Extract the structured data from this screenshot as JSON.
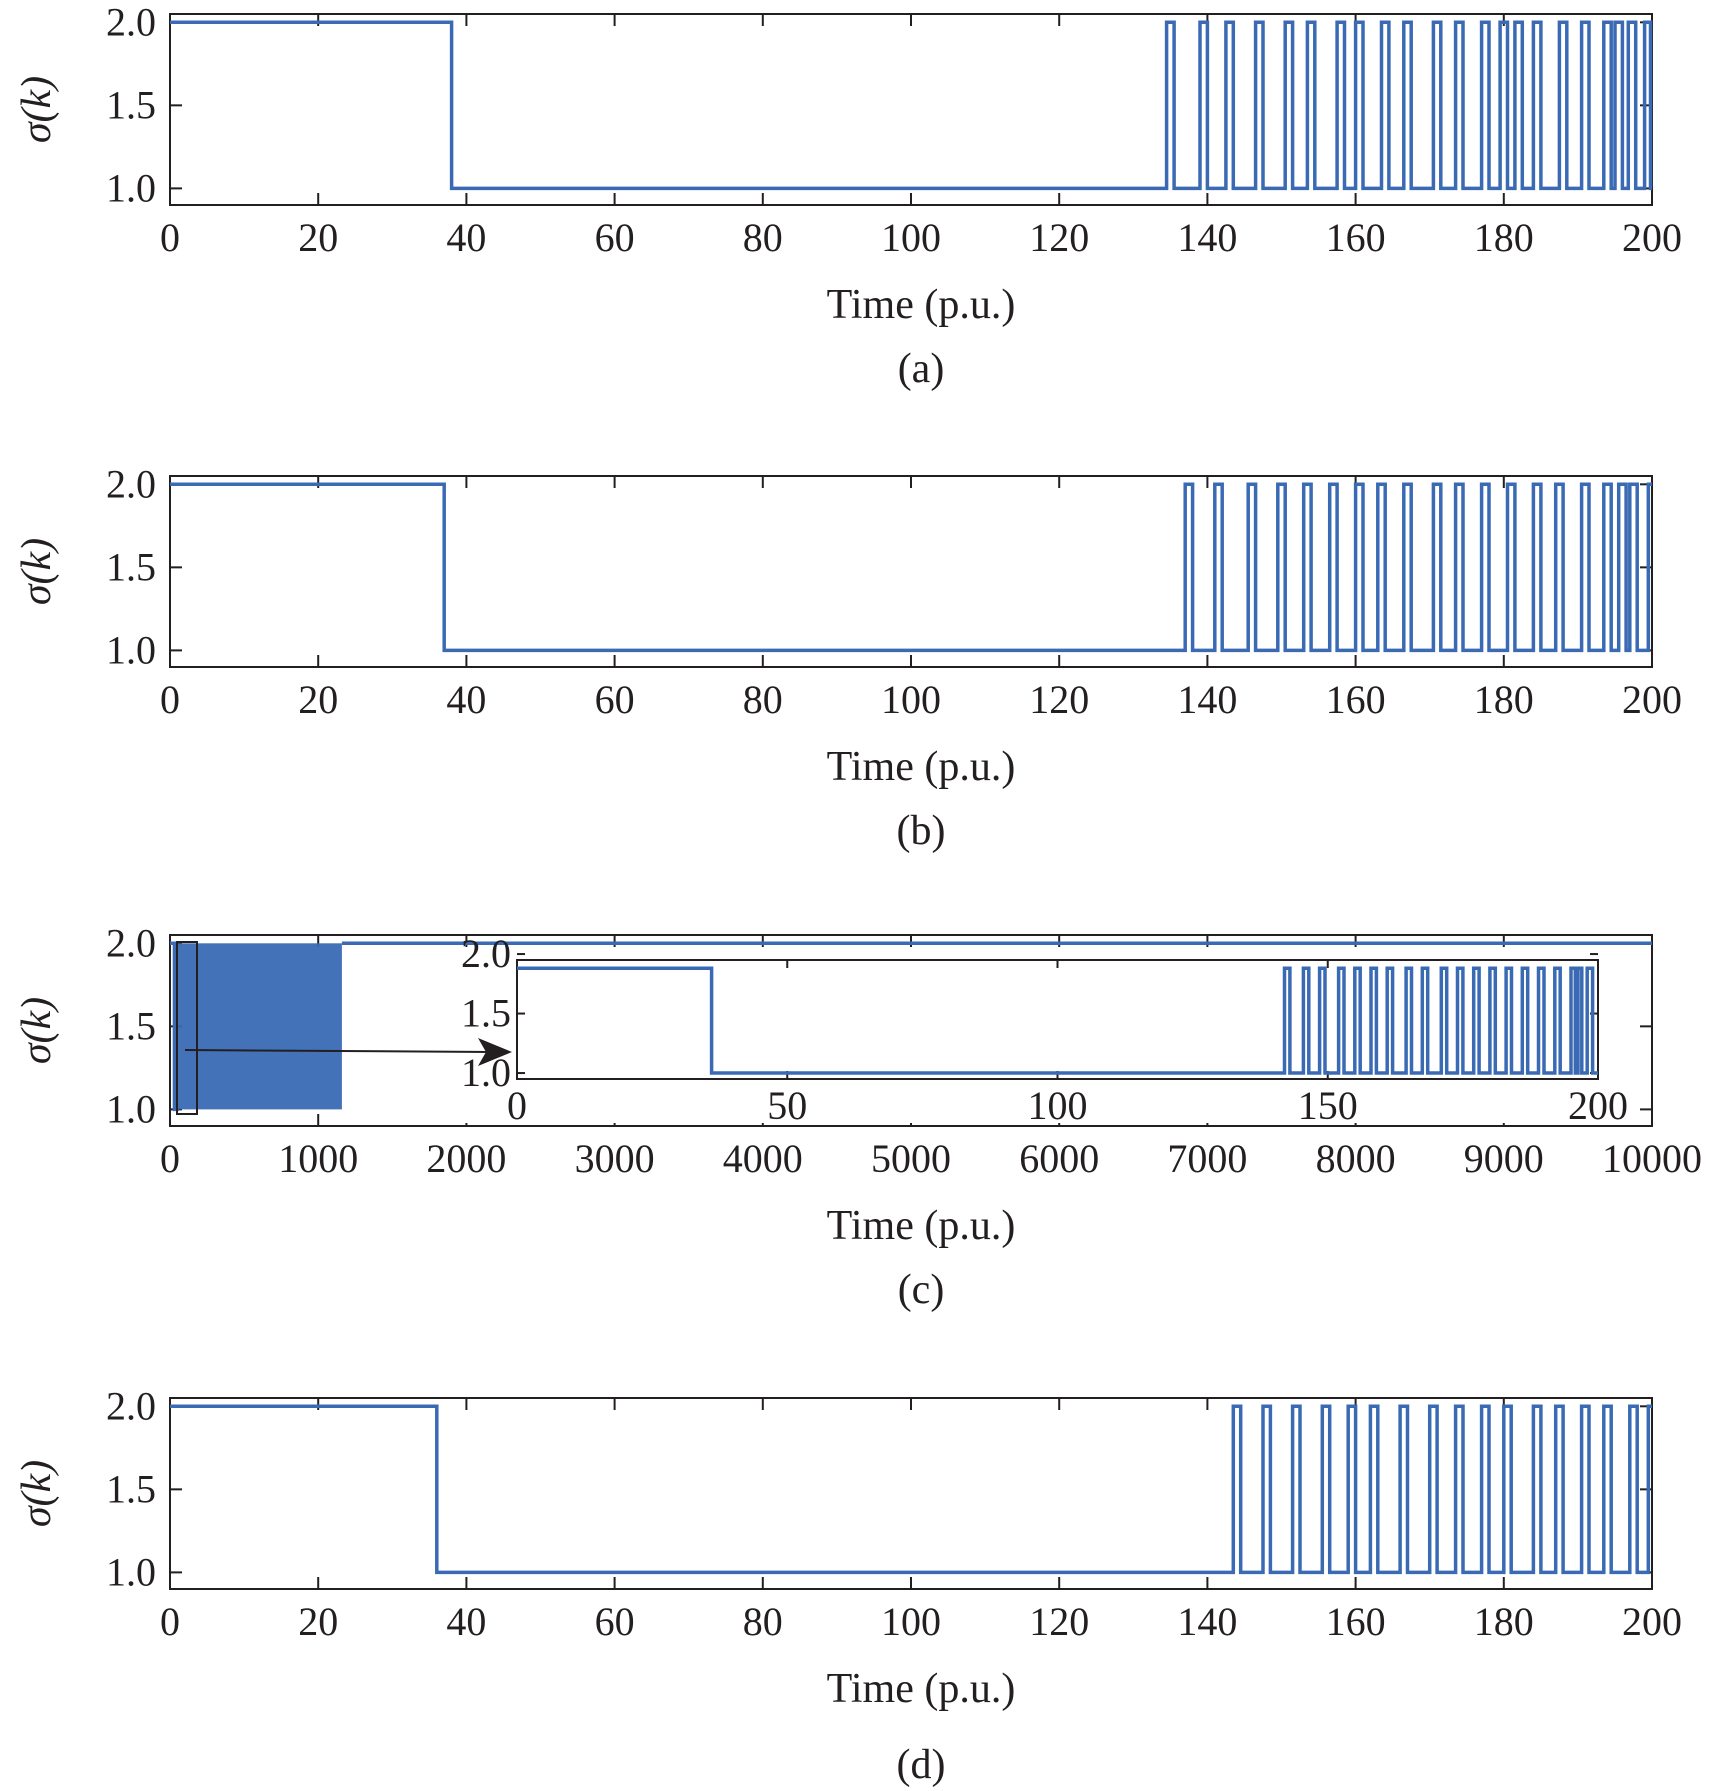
{
  "chart_data": [
    {
      "type": "line",
      "caption": "(a)",
      "xlabel": "Time (p.u.)",
      "ylabel": "σ(k)",
      "xlim": [
        0,
        200
      ],
      "ylim": [
        0.9,
        2.05
      ],
      "xticks": [
        0,
        20,
        40,
        60,
        80,
        100,
        120,
        140,
        160,
        180,
        200
      ],
      "xtick_labels": [
        "0",
        "20",
        "40",
        "60",
        "80",
        "100",
        "120",
        "140",
        "160",
        "180",
        "200"
      ],
      "yticks": [
        1.0,
        1.5,
        2.0
      ],
      "ytick_labels": [
        "1.0",
        "1.5",
        "2.0"
      ],
      "grid": false,
      "series": [
        {
          "color": "#3a6ab4",
          "initial": 2,
          "switches": [
            38,
            134.5,
            135.5,
            139,
            140,
            142.5,
            143.5,
            146.5,
            147.5,
            150.5,
            151.5,
            153.5,
            154.5,
            157.5,
            158.5,
            160,
            161,
            163.5,
            164.5,
            166.5,
            167.5,
            170.5,
            171.5,
            173.5,
            174.5,
            177,
            178,
            179.5,
            180.5,
            181.5,
            182.5,
            184,
            185,
            187.5,
            188.5,
            190.5,
            191.5,
            193.5,
            194.5,
            195,
            196,
            196.8,
            197.8,
            199,
            199.8
          ]
        }
      ]
    },
    {
      "type": "line",
      "caption": "(b)",
      "xlabel": "Time (p.u.)",
      "ylabel": "σ(k)",
      "xlim": [
        0,
        200
      ],
      "ylim": [
        0.9,
        2.05
      ],
      "xticks": [
        0,
        20,
        40,
        60,
        80,
        100,
        120,
        140,
        160,
        180,
        200
      ],
      "xtick_labels": [
        "0",
        "20",
        "40",
        "60",
        "80",
        "100",
        "120",
        "140",
        "160",
        "180",
        "200"
      ],
      "yticks": [
        1.0,
        1.5,
        2.0
      ],
      "ytick_labels": [
        "1.0",
        "1.5",
        "2.0"
      ],
      "grid": false,
      "series": [
        {
          "color": "#3a6ab4",
          "initial": 2,
          "switches": [
            37,
            137,
            138,
            141,
            142,
            145.5,
            146.5,
            149.5,
            150.5,
            153,
            154,
            156.5,
            157.5,
            160,
            161,
            163,
            164,
            166.5,
            167.5,
            170.5,
            171.5,
            173.5,
            174.5,
            177,
            178,
            180.5,
            181.5,
            184,
            185,
            187,
            188,
            190.5,
            191.5,
            193.5,
            194.5,
            195.5,
            196.5,
            197,
            198,
            199.5
          ]
        }
      ]
    },
    {
      "type": "line",
      "caption": "(c)",
      "xlabel": "Time (p.u.)",
      "ylabel": "σ(k)",
      "xlim": [
        0,
        10000
      ],
      "ylim": [
        0.9,
        2.05
      ],
      "xticks": [
        0,
        1000,
        2000,
        3000,
        4000,
        5000,
        6000,
        7000,
        8000,
        9000,
        10000
      ],
      "xtick_labels": [
        "0",
        "1000",
        "2000",
        "3000",
        "4000",
        "5000",
        "6000",
        "7000",
        "8000",
        "9000",
        "10000"
      ],
      "yticks": [
        1.0,
        1.5,
        2.0
      ],
      "ytick_labels": [
        "1.0",
        "1.5",
        "2.0"
      ],
      "grid": false,
      "series": [
        {
          "color": "#3a6ab4",
          "initial": 2,
          "dense_band": [
            30,
            1160
          ],
          "final_value": 2
        }
      ],
      "inset": {
        "xlim": [
          0,
          200
        ],
        "ylim": [
          0.95,
          1.95
        ],
        "xticks": [
          0,
          50,
          100,
          150,
          200
        ],
        "xtick_labels": [
          "0",
          "50",
          "100",
          "150",
          "200"
        ],
        "yticks": [
          1.0,
          1.5,
          2.0
        ],
        "ytick_labels": [
          "1.0",
          "1.5",
          "2.0"
        ],
        "series": [
          {
            "color": "#3a6ab4",
            "initial": 2,
            "switches": [
              36,
              142,
              143,
              145.5,
              146.5,
              148.5,
              149.5,
              152,
              153,
              155,
              156,
              158,
              159,
              161,
              162,
              164.5,
              165.5,
              167.5,
              168.5,
              171,
              172,
              174,
              175,
              177,
              178,
              180,
              181,
              183,
              184,
              186,
              187,
              189,
              190,
              192,
              193,
              195,
              195.8,
              196.3,
              197,
              198,
              199
            ]
          }
        ]
      }
    },
    {
      "type": "line",
      "caption": "(d)",
      "xlabel": "Time (p.u.)",
      "ylabel": "σ(k)",
      "xlim": [
        0,
        200
      ],
      "ylim": [
        0.9,
        2.05
      ],
      "xticks": [
        0,
        20,
        40,
        60,
        80,
        100,
        120,
        140,
        160,
        180,
        200
      ],
      "xtick_labels": [
        "0",
        "20",
        "40",
        "60",
        "80",
        "100",
        "120",
        "140",
        "160",
        "180",
        "200"
      ],
      "yticks": [
        1.0,
        1.5,
        2.0
      ],
      "ytick_labels": [
        "1.0",
        "1.5",
        "2.0"
      ],
      "grid": false,
      "series": [
        {
          "color": "#3a6ab4",
          "initial": 2,
          "switches": [
            36,
            143.5,
            144.5,
            147.5,
            148.5,
            151.5,
            152.5,
            155.5,
            156.5,
            159,
            160,
            162,
            163,
            166,
            167,
            170,
            171,
            173.5,
            174.5,
            177,
            178,
            180,
            181,
            184,
            185,
            187,
            188,
            190.5,
            191.5,
            193.5,
            194.5,
            197,
            198,
            199.5
          ]
        }
      ]
    }
  ]
}
